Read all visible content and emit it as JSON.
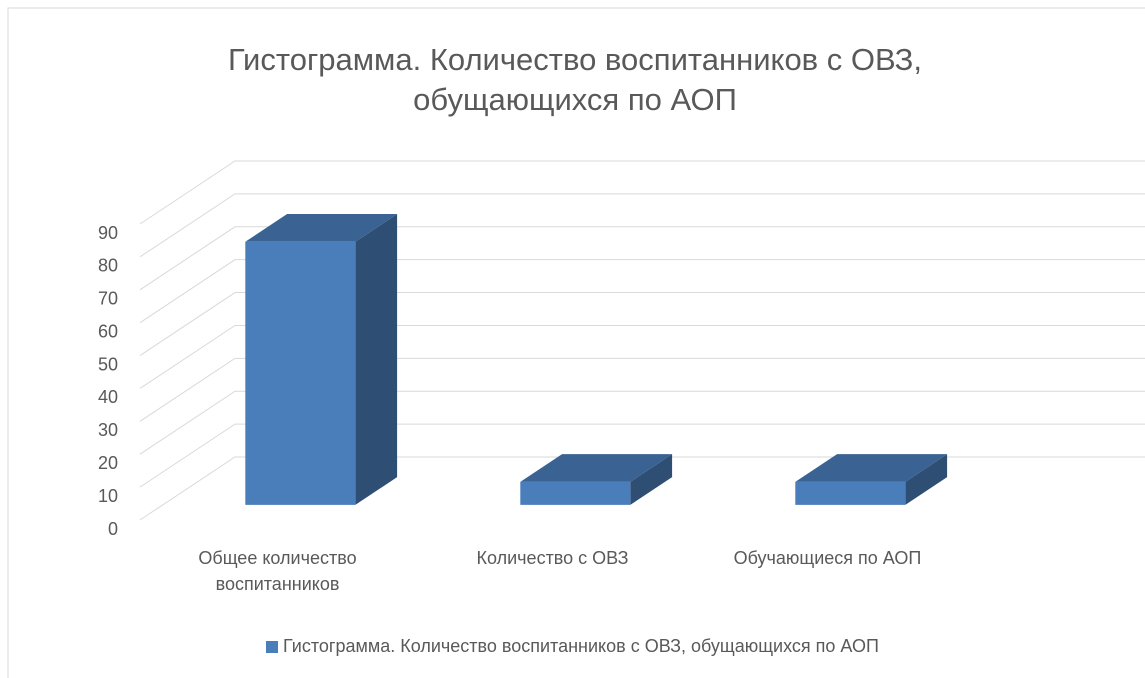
{
  "chart_data": {
    "type": "bar3d",
    "title": "Гистограмма. Количество воспитанников с ОВЗ, обущающихся по АОП",
    "categories": [
      "Общее количество воспитанников",
      "Количество с ОВЗ",
      "Обучающиеся по АОП"
    ],
    "series": [
      {
        "name": "Гистограмма. Количество воспитанников с ОВЗ, обущающихся по АОП",
        "color": "#4a7ebb",
        "values": [
          80,
          7,
          7
        ]
      }
    ],
    "ylim": [
      0,
      90
    ],
    "yticks": [
      0,
      10,
      20,
      30,
      40,
      50,
      60,
      70,
      80,
      90
    ],
    "grid": true,
    "legend": "bottom"
  }
}
